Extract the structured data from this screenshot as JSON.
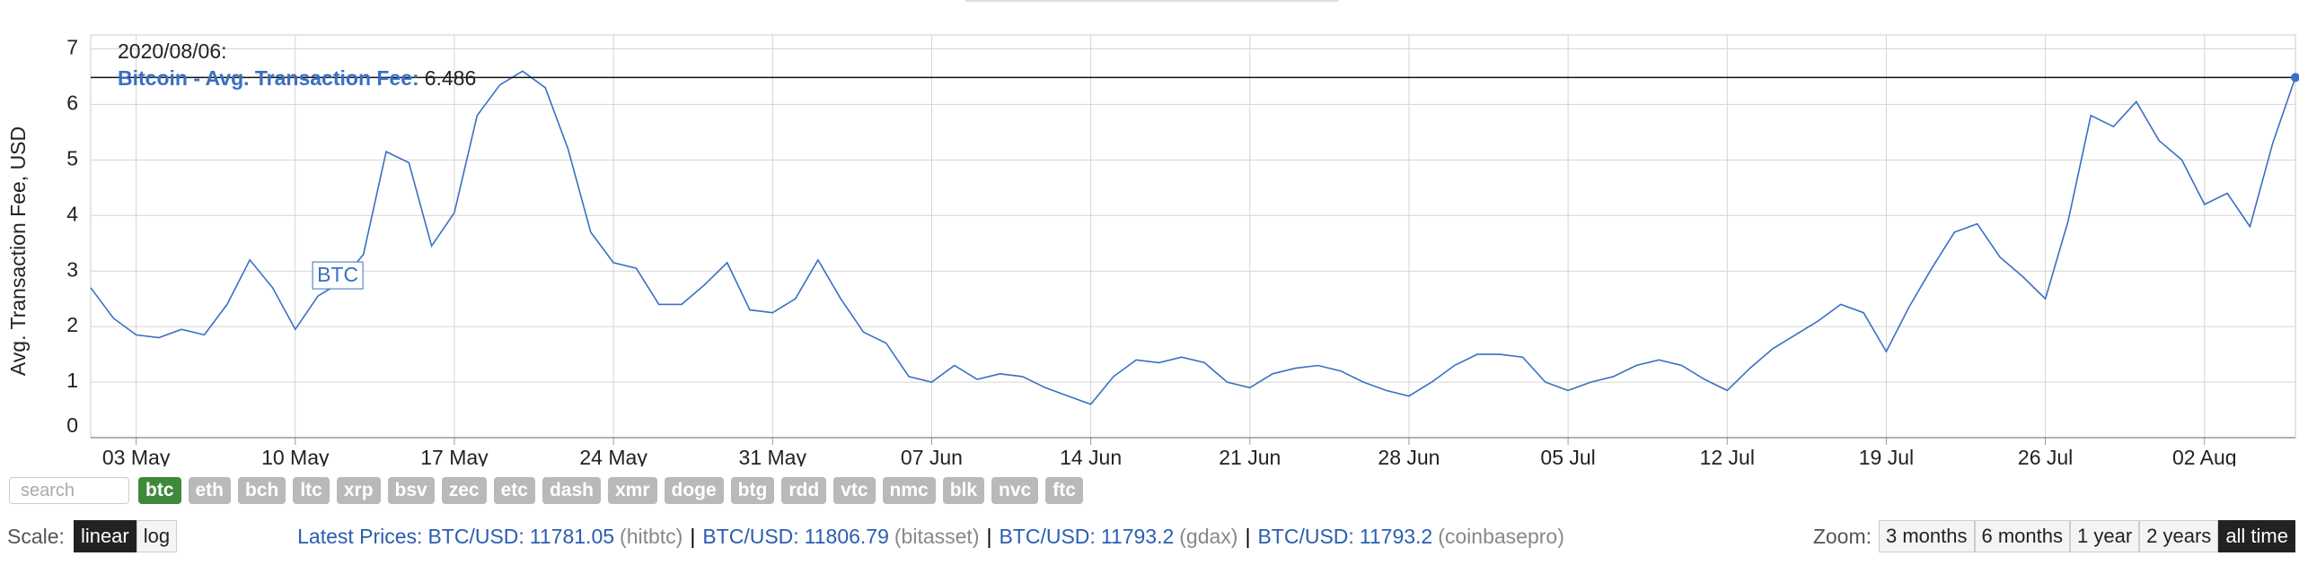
{
  "chart_data": {
    "type": "line",
    "y_label": "Avg. Transaction Fee, USD",
    "x": [
      "2020-05-01",
      "2020-05-02",
      "2020-05-03",
      "2020-05-04",
      "2020-05-05",
      "2020-05-06",
      "2020-05-07",
      "2020-05-08",
      "2020-05-09",
      "2020-05-10",
      "2020-05-11",
      "2020-05-12",
      "2020-05-13",
      "2020-05-14",
      "2020-05-15",
      "2020-05-16",
      "2020-05-17",
      "2020-05-18",
      "2020-05-19",
      "2020-05-20",
      "2020-05-21",
      "2020-05-22",
      "2020-05-23",
      "2020-05-24",
      "2020-05-25",
      "2020-05-26",
      "2020-05-27",
      "2020-05-28",
      "2020-05-29",
      "2020-05-30",
      "2020-05-31",
      "2020-06-01",
      "2020-06-02",
      "2020-06-03",
      "2020-06-04",
      "2020-06-05",
      "2020-06-06",
      "2020-06-07",
      "2020-06-08",
      "2020-06-09",
      "2020-06-10",
      "2020-06-11",
      "2020-06-12",
      "2020-06-13",
      "2020-06-14",
      "2020-06-15",
      "2020-06-16",
      "2020-06-17",
      "2020-06-18",
      "2020-06-19",
      "2020-06-20",
      "2020-06-21",
      "2020-06-22",
      "2020-06-23",
      "2020-06-24",
      "2020-06-25",
      "2020-06-26",
      "2020-06-27",
      "2020-06-28",
      "2020-06-29",
      "2020-06-30",
      "2020-07-01",
      "2020-07-02",
      "2020-07-03",
      "2020-07-04",
      "2020-07-05",
      "2020-07-06",
      "2020-07-07",
      "2020-07-08",
      "2020-07-09",
      "2020-07-10",
      "2020-07-11",
      "2020-07-12",
      "2020-07-13",
      "2020-07-14",
      "2020-07-15",
      "2020-07-16",
      "2020-07-17",
      "2020-07-18",
      "2020-07-19",
      "2020-07-20",
      "2020-07-21",
      "2020-07-22",
      "2020-07-23",
      "2020-07-24",
      "2020-07-25",
      "2020-07-26",
      "2020-07-27",
      "2020-07-28",
      "2020-07-29",
      "2020-07-30",
      "2020-07-31",
      "2020-08-01",
      "2020-08-02",
      "2020-08-03",
      "2020-08-04",
      "2020-08-05",
      "2020-08-06"
    ],
    "series": [
      {
        "name": "BTC",
        "color": "#3a6fc4",
        "values": [
          2.7,
          2.15,
          1.85,
          1.8,
          1.95,
          1.85,
          2.4,
          3.2,
          2.7,
          1.95,
          2.55,
          2.8,
          3.3,
          5.15,
          4.95,
          3.45,
          4.05,
          5.8,
          6.35,
          6.6,
          6.3,
          5.2,
          3.7,
          3.15,
          3.05,
          2.4,
          2.4,
          2.75,
          3.15,
          2.3,
          2.25,
          2.5,
          3.2,
          2.5,
          1.9,
          1.7,
          1.1,
          1.0,
          1.3,
          1.05,
          1.15,
          1.1,
          0.9,
          0.75,
          0.6,
          1.1,
          1.4,
          1.35,
          1.45,
          1.35,
          1.0,
          0.9,
          1.15,
          1.25,
          1.3,
          1.2,
          1.0,
          0.85,
          0.75,
          1.0,
          1.3,
          1.5,
          1.5,
          1.45,
          1.0,
          0.85,
          1.0,
          1.1,
          1.3,
          1.4,
          1.3,
          1.05,
          0.85,
          1.25,
          1.6,
          1.85,
          2.1,
          2.4,
          2.25,
          1.55,
          2.35,
          3.05,
          3.7,
          3.85,
          3.25,
          2.9,
          2.5,
          3.9,
          5.8,
          5.6,
          6.05,
          5.35,
          5.0,
          4.2,
          4.4,
          3.8,
          5.3,
          6.486
        ]
      }
    ],
    "xlim": [
      "2020-05-01",
      "2020-08-06"
    ],
    "xticks": [
      {
        "value": "2020-05-03",
        "label": "03 May"
      },
      {
        "value": "2020-05-10",
        "label": "10 May"
      },
      {
        "value": "2020-05-17",
        "label": "17 May"
      },
      {
        "value": "2020-05-24",
        "label": "24 May"
      },
      {
        "value": "2020-05-31",
        "label": "31 May"
      },
      {
        "value": "2020-06-07",
        "label": "07 Jun"
      },
      {
        "value": "2020-06-14",
        "label": "14 Jun"
      },
      {
        "value": "2020-06-21",
        "label": "21 Jun"
      },
      {
        "value": "2020-06-28",
        "label": "28 Jun"
      },
      {
        "value": "2020-07-05",
        "label": "05 Jul"
      },
      {
        "value": "2020-07-12",
        "label": "12 Jul"
      },
      {
        "value": "2020-07-19",
        "label": "19 Jul"
      },
      {
        "value": "2020-07-26",
        "label": "26 Jul"
      },
      {
        "value": "2020-08-02",
        "label": "02 Aug"
      }
    ],
    "ylim": [
      0,
      7.25
    ],
    "yticks": [
      0,
      1,
      2,
      3,
      4,
      5,
      6,
      7
    ],
    "grid": true,
    "tooltip": {
      "date": "2020/08/06:",
      "label": "Bitcoin - Avg. Transaction Fee:"
    }
  },
  "controls": {
    "search_placeholder": "search",
    "coins": [
      "btc",
      "eth",
      "bch",
      "ltc",
      "xrp",
      "bsv",
      "zec",
      "etc",
      "dash",
      "xmr",
      "doge",
      "btg",
      "rdd",
      "vtc",
      "nmc",
      "blk",
      "nvc",
      "ftc"
    ],
    "scale_label": "Scale:",
    "scale_options": [
      "linear",
      "log"
    ],
    "prices_label": "Latest Prices:",
    "separator": "|",
    "prices": [
      {
        "pair": "BTC/USD:",
        "price": 11781.05,
        "exchange": "(hitbtc)"
      },
      {
        "pair": "BTC/USD:",
        "price": 11806.79,
        "exchange": "(bitasset)"
      },
      {
        "pair": "BTC/USD:",
        "price": 11793.2,
        "exchange": "(gdax)"
      },
      {
        "pair": "BTC/USD:",
        "price": 11793.2,
        "exchange": "(coinbasepro)"
      }
    ],
    "zoom_label": "Zoom:",
    "zoom_options": [
      "3 months",
      "6 months",
      "1 year",
      "2 years",
      "all time"
    ]
  }
}
